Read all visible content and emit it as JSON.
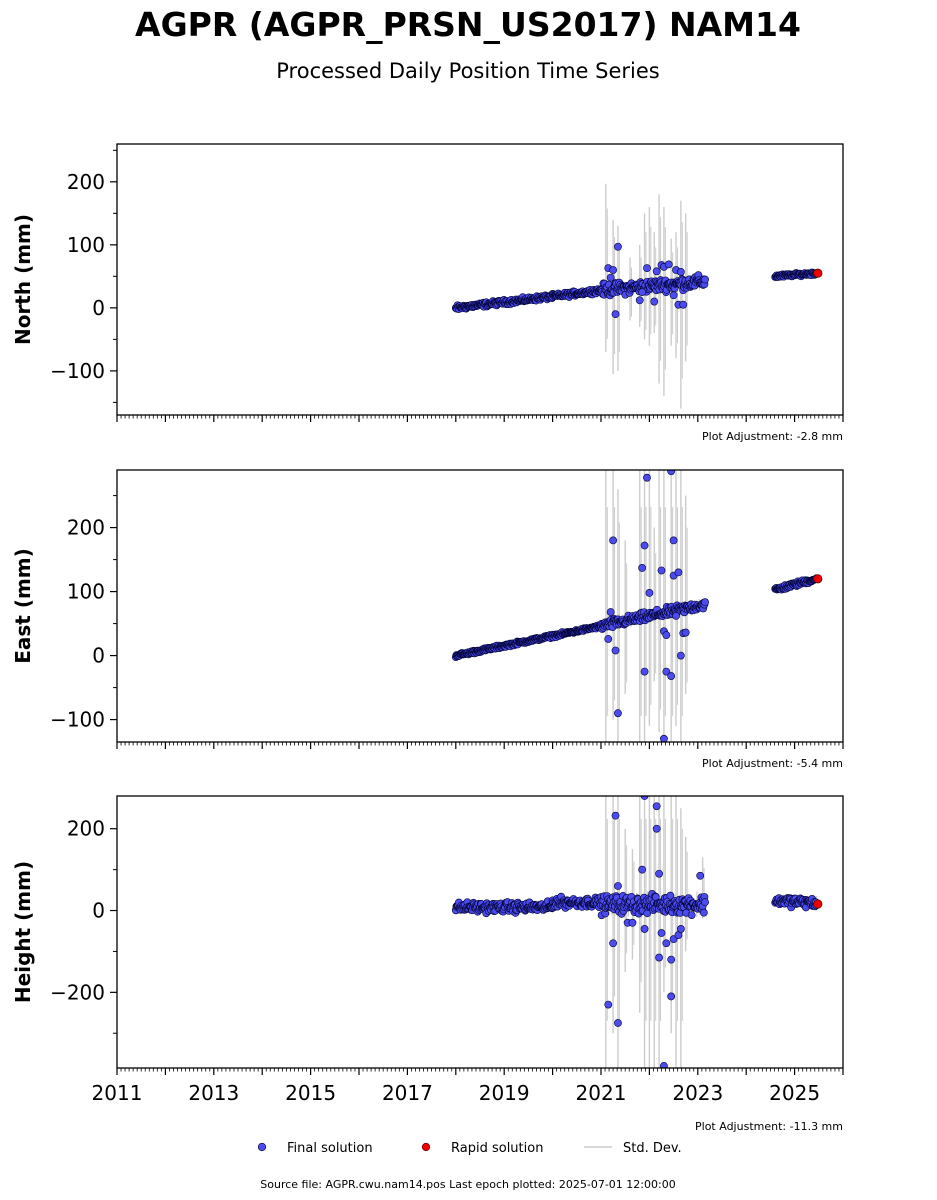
{
  "figure": {
    "title": "AGPR (AGPR_PRSN_US2017) NAM14",
    "subtitle": "Processed Daily Position Time Series",
    "source_note": "Source file: AGPR.cwu.nam14.pos  Last epoch plotted: 2025-07-01 12:00:00",
    "colors": {
      "final": "#4b4bee",
      "rapid": "#ee0000",
      "stddev": "#cccccc",
      "edge": "#000033"
    }
  },
  "legend": {
    "placement": "bottom-center",
    "items": [
      {
        "label": "Final solution",
        "marker": "dot",
        "color": "#4b4bee"
      },
      {
        "label": "Rapid solution",
        "marker": "dot",
        "color": "#ee0000"
      },
      {
        "label": "Std. Dev.",
        "marker": "line",
        "color": "#cccccc"
      }
    ]
  },
  "chart_data": [
    {
      "type": "scatter",
      "ylabel": "North (mm)",
      "adjustment": "Plot Adjustment: -2.8 mm",
      "xlim": [
        2011.0,
        2026.0
      ],
      "ylim": [
        -170,
        260
      ],
      "yticks": [
        -100,
        0,
        100,
        200
      ],
      "ytick_labels": [
        "−100",
        "0",
        "100",
        "200"
      ],
      "xticks": [
        2011,
        2013,
        2015,
        2017,
        2019,
        2021,
        2023,
        2025
      ],
      "xtick_labels_shown": false,
      "grid": false,
      "segments": [
        {
          "x": [
            2018.0,
            2020.0
          ],
          "y": [
            0,
            18
          ],
          "noise": 3
        },
        {
          "x": [
            2020.0,
            2021.0
          ],
          "y": [
            18,
            28
          ],
          "noise": 3
        },
        {
          "x": [
            2021.0,
            2023.15
          ],
          "y": [
            28,
            42
          ],
          "noise": 8
        },
        {
          "x": [
            2024.6,
            2025.45
          ],
          "y": [
            50,
            55
          ],
          "noise": 2
        }
      ],
      "outliers": [
        {
          "x": 2021.15,
          "y": 63
        },
        {
          "x": 2021.25,
          "y": 60
        },
        {
          "x": 2021.3,
          "y": -10
        },
        {
          "x": 2021.35,
          "y": 97
        },
        {
          "x": 2021.2,
          "y": 48
        },
        {
          "x": 2021.95,
          "y": 63
        },
        {
          "x": 2022.15,
          "y": 58
        },
        {
          "x": 2022.25,
          "y": 68
        },
        {
          "x": 2022.3,
          "y": 65
        },
        {
          "x": 2022.4,
          "y": 69
        },
        {
          "x": 2022.55,
          "y": 60
        },
        {
          "x": 2022.65,
          "y": 57
        },
        {
          "x": 2021.8,
          "y": 12
        },
        {
          "x": 2022.1,
          "y": 10
        },
        {
          "x": 2022.5,
          "y": 20
        },
        {
          "x": 2022.6,
          "y": 5
        },
        {
          "x": 2022.7,
          "y": 5
        },
        {
          "x": 2021.85,
          "y": 25
        }
      ],
      "errorbars": [
        {
          "x": 2021.1,
          "low": -70,
          "high": 197
        },
        {
          "x": 2021.25,
          "low": -105,
          "high": 140
        },
        {
          "x": 2021.35,
          "low": -100,
          "high": 130
        },
        {
          "x": 2021.6,
          "low": -20,
          "high": 80
        },
        {
          "x": 2021.8,
          "low": -30,
          "high": 100
        },
        {
          "x": 2021.9,
          "low": -50,
          "high": 150
        },
        {
          "x": 2022.0,
          "low": -60,
          "high": 160
        },
        {
          "x": 2022.1,
          "low": -40,
          "high": 120
        },
        {
          "x": 2022.2,
          "low": -120,
          "high": 180
        },
        {
          "x": 2022.3,
          "low": -140,
          "high": 160
        },
        {
          "x": 2022.45,
          "low": -60,
          "high": 110
        },
        {
          "x": 2022.55,
          "low": -80,
          "high": 120
        },
        {
          "x": 2022.65,
          "low": -160,
          "high": 170
        },
        {
          "x": 2022.75,
          "low": -85,
          "high": 150
        }
      ],
      "rapid": [
        {
          "x": 2025.48,
          "y": 55
        }
      ]
    },
    {
      "type": "scatter",
      "ylabel": "East (mm)",
      "adjustment": "Plot Adjustment: -5.4 mm",
      "xlim": [
        2011.0,
        2026.0
      ],
      "ylim": [
        -135,
        290
      ],
      "yticks": [
        -100,
        0,
        100,
        200
      ],
      "ytick_labels": [
        "−100",
        "0",
        "100",
        "200"
      ],
      "xticks": [
        2011,
        2013,
        2015,
        2017,
        2019,
        2021,
        2023,
        2025
      ],
      "xtick_labels_shown": false,
      "grid": false,
      "segments": [
        {
          "x": [
            2018.0,
            2021.0
          ],
          "y": [
            0,
            46
          ],
          "noise": 2
        },
        {
          "x": [
            2021.0,
            2023.15
          ],
          "y": [
            46,
            80
          ],
          "noise": 6
        },
        {
          "x": [
            2024.6,
            2025.45
          ],
          "y": [
            103,
            120
          ],
          "noise": 3
        }
      ],
      "outliers": [
        {
          "x": 2021.2,
          "y": 68
        },
        {
          "x": 2021.25,
          "y": 180
        },
        {
          "x": 2021.3,
          "y": 8
        },
        {
          "x": 2021.35,
          "y": -90
        },
        {
          "x": 2021.15,
          "y": 26
        },
        {
          "x": 2021.9,
          "y": 172
        },
        {
          "x": 2021.95,
          "y": 278
        },
        {
          "x": 2022.0,
          "y": 98
        },
        {
          "x": 2021.85,
          "y": 137
        },
        {
          "x": 2021.9,
          "y": -25
        },
        {
          "x": 2022.25,
          "y": 133
        },
        {
          "x": 2022.3,
          "y": -130
        },
        {
          "x": 2022.35,
          "y": -25
        },
        {
          "x": 2022.3,
          "y": 38
        },
        {
          "x": 2022.35,
          "y": 32
        },
        {
          "x": 2022.45,
          "y": 288
        },
        {
          "x": 2022.5,
          "y": 180
        },
        {
          "x": 2022.5,
          "y": 125
        },
        {
          "x": 2022.45,
          "y": -32
        },
        {
          "x": 2022.6,
          "y": 130
        },
        {
          "x": 2022.65,
          "y": 0
        },
        {
          "x": 2022.7,
          "y": 35
        },
        {
          "x": 2022.75,
          "y": 36
        },
        {
          "x": 2022.55,
          "y": 62
        }
      ],
      "errorbars": [
        {
          "x": 2021.1,
          "low": -135,
          "high": 290
        },
        {
          "x": 2021.25,
          "low": -100,
          "high": 290
        },
        {
          "x": 2021.35,
          "low": -135,
          "high": 260
        },
        {
          "x": 2021.5,
          "low": -60,
          "high": 180
        },
        {
          "x": 2021.8,
          "low": -135,
          "high": 290
        },
        {
          "x": 2021.9,
          "low": -135,
          "high": 290
        },
        {
          "x": 2022.0,
          "low": -110,
          "high": 290
        },
        {
          "x": 2022.1,
          "low": -40,
          "high": 200
        },
        {
          "x": 2022.2,
          "low": -120,
          "high": 290
        },
        {
          "x": 2022.3,
          "low": -135,
          "high": 290
        },
        {
          "x": 2022.45,
          "low": -135,
          "high": 290
        },
        {
          "x": 2022.55,
          "low": -110,
          "high": 290
        },
        {
          "x": 2022.65,
          "low": -135,
          "high": 290
        },
        {
          "x": 2022.75,
          "low": -60,
          "high": 250
        }
      ],
      "rapid": [
        {
          "x": 2025.48,
          "y": 120
        }
      ]
    },
    {
      "type": "scatter",
      "ylabel": "Height (mm)",
      "adjustment": "Plot Adjustment: -11.3 mm",
      "xlim": [
        2011.0,
        2026.0
      ],
      "ylim": [
        -385,
        280
      ],
      "yticks": [
        -200,
        0,
        200
      ],
      "ytick_labels": [
        "−200",
        "0",
        "200"
      ],
      "xticks": [
        2011,
        2013,
        2015,
        2017,
        2019,
        2021,
        2023,
        2025
      ],
      "xtick_labels": [
        "2011",
        "2013",
        "2015",
        "2017",
        "2019",
        "2021",
        "2023",
        "2025"
      ],
      "xtick_labels_shown": true,
      "grid": false,
      "segments": [
        {
          "x": [
            2018.0,
            2020.0
          ],
          "y": [
            8,
            8
          ],
          "noise": 10
        },
        {
          "x": [
            2020.0,
            2021.0
          ],
          "y": [
            20,
            20
          ],
          "noise": 10
        },
        {
          "x": [
            2021.0,
            2023.15
          ],
          "y": [
            15,
            15
          ],
          "noise": 18
        },
        {
          "x": [
            2024.6,
            2025.45
          ],
          "y": [
            25,
            18
          ],
          "noise": 10
        }
      ],
      "outliers": [
        {
          "x": 2021.15,
          "y": -230
        },
        {
          "x": 2021.3,
          "y": 232
        },
        {
          "x": 2021.35,
          "y": -275
        },
        {
          "x": 2021.25,
          "y": -80
        },
        {
          "x": 2021.35,
          "y": 60
        },
        {
          "x": 2021.9,
          "y": 280
        },
        {
          "x": 2021.85,
          "y": 100
        },
        {
          "x": 2021.9,
          "y": -45
        },
        {
          "x": 2022.15,
          "y": 255
        },
        {
          "x": 2022.15,
          "y": 200
        },
        {
          "x": 2022.2,
          "y": 90
        },
        {
          "x": 2022.2,
          "y": -115
        },
        {
          "x": 2022.25,
          "y": -55
        },
        {
          "x": 2022.3,
          "y": -380
        },
        {
          "x": 2022.35,
          "y": -80
        },
        {
          "x": 2022.45,
          "y": -210
        },
        {
          "x": 2022.45,
          "y": -120
        },
        {
          "x": 2022.5,
          "y": -70
        },
        {
          "x": 2022.6,
          "y": -60
        },
        {
          "x": 2022.65,
          "y": -45
        },
        {
          "x": 2023.05,
          "y": 85
        },
        {
          "x": 2021.55,
          "y": -30
        },
        {
          "x": 2021.65,
          "y": -30
        }
      ],
      "errorbars": [
        {
          "x": 2021.1,
          "low": -385,
          "high": 280
        },
        {
          "x": 2021.25,
          "low": -300,
          "high": 280
        },
        {
          "x": 2021.35,
          "low": -385,
          "high": 280
        },
        {
          "x": 2021.5,
          "low": -150,
          "high": 200
        },
        {
          "x": 2021.65,
          "low": -120,
          "high": 150
        },
        {
          "x": 2021.8,
          "low": -250,
          "high": 280
        },
        {
          "x": 2021.9,
          "low": -385,
          "high": 280
        },
        {
          "x": 2022.0,
          "low": -385,
          "high": 280
        },
        {
          "x": 2022.1,
          "low": -385,
          "high": 280
        },
        {
          "x": 2022.2,
          "low": -385,
          "high": 280
        },
        {
          "x": 2022.3,
          "low": -200,
          "high": 280
        },
        {
          "x": 2022.45,
          "low": -300,
          "high": 280
        },
        {
          "x": 2022.55,
          "low": -385,
          "high": 280
        },
        {
          "x": 2022.65,
          "low": -385,
          "high": 250
        },
        {
          "x": 2022.75,
          "low": -100,
          "high": 180
        },
        {
          "x": 2023.1,
          "low": -20,
          "high": 130
        }
      ],
      "rapid": [
        {
          "x": 2025.48,
          "y": 16
        }
      ]
    }
  ]
}
